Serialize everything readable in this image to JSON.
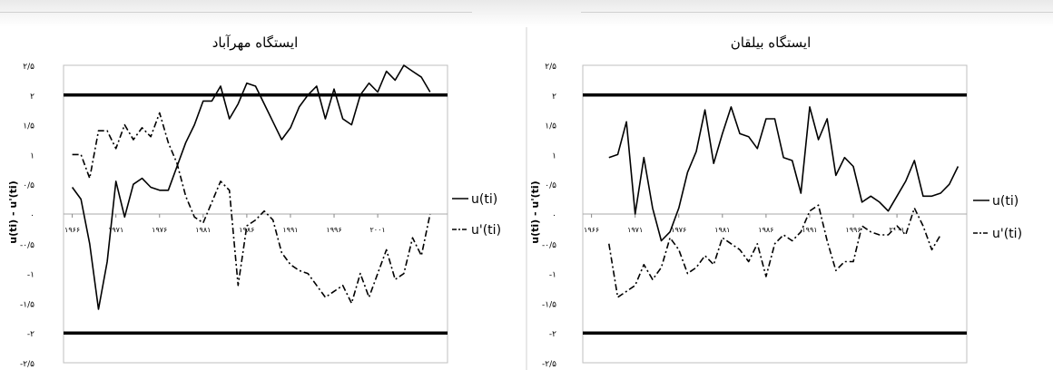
{
  "chart_data": [
    {
      "type": "line",
      "title": "ایستگاه مهرآباد",
      "ylabel": "u(ti) - u'(ti)",
      "ylim": [
        -2.5,
        2.5
      ],
      "yticks": [
        2.5,
        2,
        1.5,
        1,
        0.5,
        0,
        -0.5,
        -1,
        -1.5,
        -2,
        -2.5
      ],
      "ytick_labels": [
        "۲/۵",
        "۲",
        "۱/۵",
        "۱",
        "۰/۵",
        "۰",
        "-۰/۵",
        "-۱",
        "-۱/۵",
        "-۲",
        "-۲/۵"
      ],
      "xlim": [
        1965,
        2009
      ],
      "xticks": [
        1966,
        1971,
        1976,
        1981,
        1986,
        1991,
        1996,
        2001
      ],
      "xtick_labels": [
        "۱۹۶۶",
        "۱۹۷۱",
        "۱۹۷۶",
        "۱۹۸۱",
        "۱۹۸۶",
        "۱۹۹۱",
        "۱۹۹۶",
        "۲۰۰۱"
      ],
      "critical": [
        2,
        -2
      ],
      "series": [
        {
          "name": "u(ti)",
          "style": "solid",
          "x": [
            1966,
            1967,
            1968,
            1969,
            1970,
            1971,
            1972,
            1973,
            1974,
            1975,
            1976,
            1977,
            1978,
            1979,
            1980,
            1981,
            1982,
            1983,
            1984,
            1985,
            1986,
            1987,
            1988,
            1989,
            1990,
            1991,
            1992,
            1993,
            1994,
            1995,
            1996,
            1997,
            1998,
            1999,
            2000,
            2001,
            2002,
            2003,
            2004,
            2005,
            2006,
            2007
          ],
          "values": [
            0.45,
            0.25,
            -0.5,
            -1.6,
            -0.8,
            0.55,
            -0.05,
            0.5,
            0.6,
            0.45,
            0.4,
            0.4,
            0.8,
            1.2,
            1.5,
            1.9,
            1.9,
            2.15,
            1.6,
            1.85,
            2.2,
            2.15,
            1.85,
            1.55,
            1.25,
            1.45,
            1.8,
            2.0,
            2.15,
            1.6,
            2.1,
            1.6,
            1.5,
            2.0,
            2.2,
            2.05,
            2.4,
            2.25,
            2.5,
            2.4,
            2.3,
            2.05
          ]
        },
        {
          "name": "u'(ti)",
          "style": "dashdot",
          "x": [
            1966,
            1967,
            1968,
            1969,
            1970,
            1971,
            1972,
            1973,
            1974,
            1975,
            1976,
            1977,
            1978,
            1979,
            1980,
            1981,
            1982,
            1983,
            1984,
            1985,
            1986,
            1987,
            1988,
            1989,
            1990,
            1991,
            1992,
            1993,
            1994,
            1995,
            1996,
            1997,
            1998,
            1999,
            2000,
            2001,
            2002,
            2003,
            2004,
            2005,
            2006,
            2007
          ],
          "values": [
            1.0,
            1.0,
            0.6,
            1.4,
            1.4,
            1.1,
            1.5,
            1.25,
            1.45,
            1.3,
            1.7,
            1.2,
            0.85,
            0.3,
            -0.05,
            -0.15,
            0.2,
            0.55,
            0.4,
            -1.2,
            -0.2,
            -0.1,
            0.05,
            -0.1,
            -0.65,
            -0.85,
            -0.95,
            -1.0,
            -1.2,
            -1.4,
            -1.3,
            -1.2,
            -1.5,
            -1.0,
            -1.4,
            -1.0,
            -0.6,
            -1.1,
            -1.0,
            -0.4,
            -0.7,
            0.0
          ]
        }
      ]
    },
    {
      "type": "line",
      "title": "ایستگاه بیلقان",
      "ylabel": "u(ti) - u'(ti)",
      "ylim": [
        -2.5,
        2.5
      ],
      "yticks": [
        2.5,
        2,
        1.5,
        1,
        0.5,
        0,
        -0.5,
        -1,
        -1.5,
        -2,
        -2.5
      ],
      "ytick_labels": [
        "۲/۵",
        "۲",
        "۱/۵",
        "۱",
        "۰/۵",
        "۰",
        "-۰/۵",
        "-۱",
        "-۱/۵",
        "-۲",
        "-۲/۵"
      ],
      "xlim": [
        1965,
        2009
      ],
      "xticks": [
        1966,
        1971,
        1976,
        1981,
        1986,
        1991,
        1996,
        2001
      ],
      "xtick_labels": [
        "۱۹۶۶",
        "۱۹۷۱",
        "۱۹۷۶",
        "۱۹۸۱",
        "۱۹۸۶",
        "۱۹۹۱",
        "۱۹۹۶",
        "۲۰۰۱"
      ],
      "critical": [
        2,
        -2
      ],
      "series": [
        {
          "name": "u(ti)",
          "style": "solid",
          "x": [
            1968,
            1969,
            1970,
            1971,
            1972,
            1973,
            1974,
            1975,
            1976,
            1977,
            1978,
            1979,
            1980,
            1981,
            1982,
            1983,
            1984,
            1985,
            1986,
            1987,
            1988,
            1989,
            1990,
            1991,
            1992,
            1993,
            1994,
            1995,
            1996,
            1997,
            1998,
            1999,
            2000,
            2001,
            2002,
            2003,
            2004,
            2005,
            2006,
            2007,
            2008
          ],
          "values": [
            0.95,
            1.0,
            1.55,
            0.0,
            0.95,
            0.1,
            -0.45,
            -0.3,
            0.1,
            0.7,
            1.05,
            1.75,
            0.85,
            1.35,
            1.8,
            1.35,
            1.3,
            1.1,
            1.6,
            1.6,
            0.95,
            0.9,
            0.35,
            1.8,
            1.25,
            1.6,
            0.65,
            0.95,
            0.8,
            0.2,
            0.3,
            0.2,
            0.05,
            0.3,
            0.55,
            0.9,
            0.3,
            0.3,
            0.35,
            0.5,
            0.8
          ]
        },
        {
          "name": "u'(ti)",
          "style": "dashdot",
          "x": [
            1968,
            1969,
            1970,
            1971,
            1972,
            1973,
            1974,
            1975,
            1976,
            1977,
            1978,
            1979,
            1980,
            1981,
            1982,
            1983,
            1984,
            1985,
            1986,
            1987,
            1988,
            1989,
            1990,
            1991,
            1992,
            1993,
            1994,
            1995,
            1996,
            1997,
            1998,
            1999,
            2000,
            2001,
            2002,
            2003,
            2004,
            2005,
            2006
          ],
          "values": [
            -0.5,
            -1.4,
            -1.3,
            -1.2,
            -0.85,
            -1.1,
            -0.9,
            -0.4,
            -0.6,
            -1.0,
            -0.9,
            -0.7,
            -0.85,
            -0.4,
            -0.5,
            -0.6,
            -0.8,
            -0.5,
            -1.05,
            -0.5,
            -0.35,
            -0.45,
            -0.3,
            0.05,
            0.15,
            -0.45,
            -0.95,
            -0.8,
            -0.8,
            -0.2,
            -0.3,
            -0.35,
            -0.35,
            -0.2,
            -0.35,
            0.1,
            -0.2,
            -0.6,
            -0.35
          ]
        }
      ]
    }
  ]
}
